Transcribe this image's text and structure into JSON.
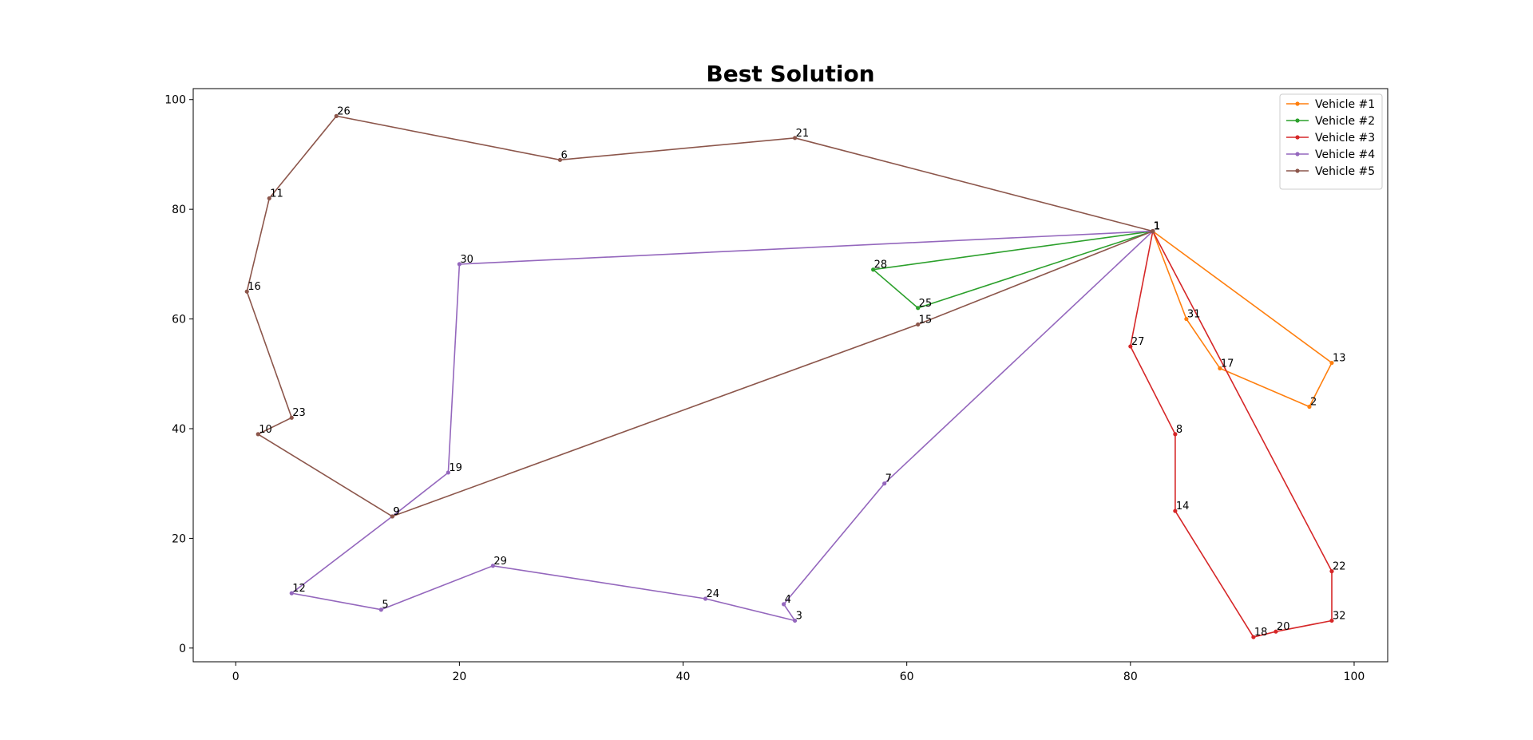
{
  "chart_data": {
    "type": "line",
    "title": "Best Solution",
    "xlabel": "",
    "ylabel": "",
    "xlim": [
      -3.8,
      103
    ],
    "ylim": [
      -2.5,
      102
    ],
    "xticks": [
      0,
      20,
      40,
      60,
      80,
      100
    ],
    "yticks": [
      0,
      20,
      40,
      60,
      80,
      100
    ],
    "grid": false,
    "legend_position": "top-right",
    "series": [
      {
        "name": "Vehicle #1",
        "color": "#ff7f0e",
        "points": [
          {
            "label": "1",
            "x": 82,
            "y": 76
          },
          {
            "label": "31",
            "x": 85,
            "y": 60
          },
          {
            "label": "17",
            "x": 88,
            "y": 51
          },
          {
            "label": "2",
            "x": 96,
            "y": 44
          },
          {
            "label": "13",
            "x": 98,
            "y": 52
          },
          {
            "label": "1",
            "x": 82,
            "y": 76
          }
        ]
      },
      {
        "name": "Vehicle #2",
        "color": "#2ca02c",
        "points": [
          {
            "label": "1",
            "x": 82,
            "y": 76
          },
          {
            "label": "28",
            "x": 57,
            "y": 69
          },
          {
            "label": "25",
            "x": 61,
            "y": 62
          },
          {
            "label": "1",
            "x": 82,
            "y": 76
          }
        ]
      },
      {
        "name": "Vehicle #3",
        "color": "#d62728",
        "points": [
          {
            "label": "1",
            "x": 82,
            "y": 76
          },
          {
            "label": "27",
            "x": 80,
            "y": 55
          },
          {
            "label": "8",
            "x": 84,
            "y": 39
          },
          {
            "label": "14",
            "x": 84,
            "y": 25
          },
          {
            "label": "18",
            "x": 91,
            "y": 2
          },
          {
            "label": "20",
            "x": 93,
            "y": 3
          },
          {
            "label": "32",
            "x": 98,
            "y": 5
          },
          {
            "label": "22",
            "x": 98,
            "y": 14
          },
          {
            "label": "1",
            "x": 82,
            "y": 76
          }
        ]
      },
      {
        "name": "Vehicle #4",
        "color": "#9467bd",
        "points": [
          {
            "label": "1",
            "x": 82,
            "y": 76
          },
          {
            "label": "30",
            "x": 20,
            "y": 70
          },
          {
            "label": "19",
            "x": 19,
            "y": 32
          },
          {
            "label": "9",
            "x": 14,
            "y": 24
          },
          {
            "label": "12",
            "x": 5,
            "y": 10
          },
          {
            "label": "5",
            "x": 13,
            "y": 7
          },
          {
            "label": "29",
            "x": 23,
            "y": 15
          },
          {
            "label": "24",
            "x": 42,
            "y": 9
          },
          {
            "label": "3",
            "x": 50,
            "y": 5
          },
          {
            "label": "4",
            "x": 49,
            "y": 8
          },
          {
            "label": "7",
            "x": 58,
            "y": 30
          },
          {
            "label": "1",
            "x": 82,
            "y": 76
          }
        ]
      },
      {
        "name": "Vehicle #5",
        "color": "#8c564b",
        "points": [
          {
            "label": "1",
            "x": 82,
            "y": 76
          },
          {
            "label": "21",
            "x": 50,
            "y": 93
          },
          {
            "label": "6",
            "x": 29,
            "y": 89
          },
          {
            "label": "26",
            "x": 9,
            "y": 97
          },
          {
            "label": "11",
            "x": 3,
            "y": 82
          },
          {
            "label": "16",
            "x": 1,
            "y": 65
          },
          {
            "label": "23",
            "x": 5,
            "y": 42
          },
          {
            "label": "10",
            "x": 2,
            "y": 39
          },
          {
            "label": "9",
            "x": 14,
            "y": 24
          },
          {
            "label": "15",
            "x": 61,
            "y": 59
          },
          {
            "label": "1",
            "x": 82,
            "y": 76
          }
        ]
      }
    ]
  }
}
